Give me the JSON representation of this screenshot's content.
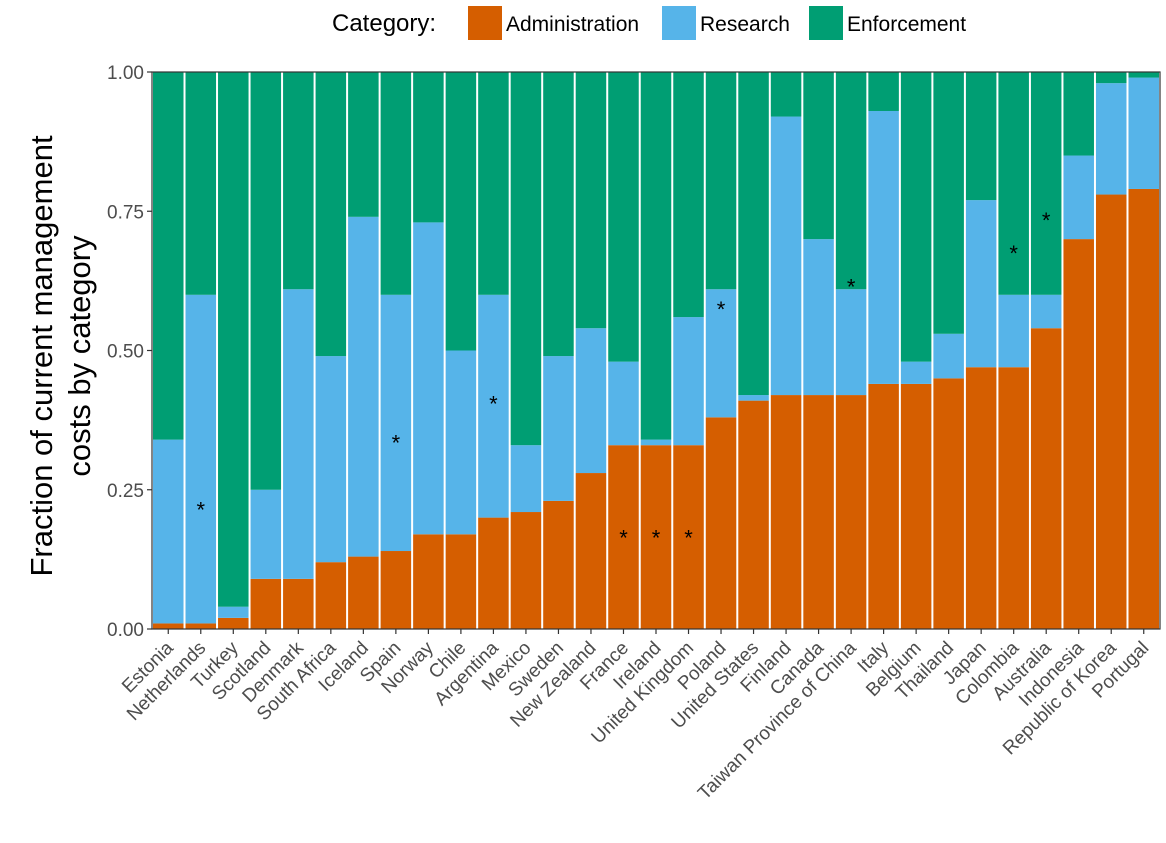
{
  "chart_data": {
    "type": "bar",
    "stacked": true,
    "normalized": true,
    "legend": {
      "title": "Category:",
      "position": "top"
    },
    "ylabel": [
      "Fraction of current management",
      "costs by category"
    ],
    "xlabel": "",
    "ylim": [
      0,
      1
    ],
    "yticks": [
      0.0,
      0.25,
      0.5,
      0.75,
      1.0
    ],
    "ytick_labels": [
      "0.00",
      "0.25",
      "0.50",
      "0.75",
      "1.00"
    ],
    "categories": [
      "Estonia",
      "Netherlands",
      "Turkey",
      "Scotland",
      "Denmark",
      "South Africa",
      "Iceland",
      "Spain",
      "Norway",
      "Chile",
      "Argentina",
      "Mexico",
      "Sweden",
      "New Zealand",
      "France",
      "Ireland",
      "United Kingdom",
      "Poland",
      "United States",
      "Finland",
      "Canada",
      "Taiwan Province of China",
      "Italy",
      "Belgium",
      "Thailand",
      "Japan",
      "Colombia",
      "Australia",
      "Indonesia",
      "Republic of Korea",
      "Portugal"
    ],
    "series": [
      {
        "name": "Administration",
        "color": "#D55E00",
        "values": [
          0.01,
          0.01,
          0.02,
          0.09,
          0.09,
          0.12,
          0.13,
          0.14,
          0.17,
          0.17,
          0.2,
          0.21,
          0.23,
          0.28,
          0.33,
          0.33,
          0.33,
          0.38,
          0.41,
          0.42,
          0.42,
          0.42,
          0.44,
          0.44,
          0.45,
          0.47,
          0.47,
          0.54,
          0.7,
          0.78,
          0.79
        ]
      },
      {
        "name": "Research",
        "color": "#56B4E9",
        "values": [
          0.33,
          0.59,
          0.02,
          0.16,
          0.52,
          0.37,
          0.61,
          0.46,
          0.56,
          0.33,
          0.4,
          0.12,
          0.26,
          0.26,
          0.15,
          0.01,
          0.23,
          0.23,
          0.01,
          0.5,
          0.28,
          0.19,
          0.49,
          0.04,
          0.08,
          0.3,
          0.13,
          0.06,
          0.15,
          0.2,
          0.2
        ]
      },
      {
        "name": "Enforcement",
        "color": "#009E73",
        "values": [
          0.66,
          0.4,
          0.96,
          0.75,
          0.39,
          0.51,
          0.26,
          0.4,
          0.27,
          0.5,
          0.4,
          0.67,
          0.51,
          0.46,
          0.52,
          0.66,
          0.44,
          0.39,
          0.58,
          0.08,
          0.3,
          0.39,
          0.07,
          0.52,
          0.47,
          0.23,
          0.4,
          0.4,
          0.15,
          0.02,
          0.01
        ]
      }
    ],
    "annotations": [
      {
        "category": "Netherlands",
        "y": 0.22,
        "text": "*"
      },
      {
        "category": "Spain",
        "y": 0.34,
        "text": "*"
      },
      {
        "category": "Argentina",
        "y": 0.41,
        "text": "*"
      },
      {
        "category": "France",
        "y": 0.17,
        "text": "*"
      },
      {
        "category": "Ireland",
        "y": 0.17,
        "text": "*"
      },
      {
        "category": "United Kingdom",
        "y": 0.17,
        "text": "*"
      },
      {
        "category": "Poland",
        "y": 0.58,
        "text": "*"
      },
      {
        "category": "Taiwan Province of China",
        "y": 0.62,
        "text": "*"
      },
      {
        "category": "Colombia",
        "y": 0.68,
        "text": "*"
      },
      {
        "category": "Australia",
        "y": 0.74,
        "text": "*"
      }
    ],
    "grid": false,
    "panel_border": true
  }
}
